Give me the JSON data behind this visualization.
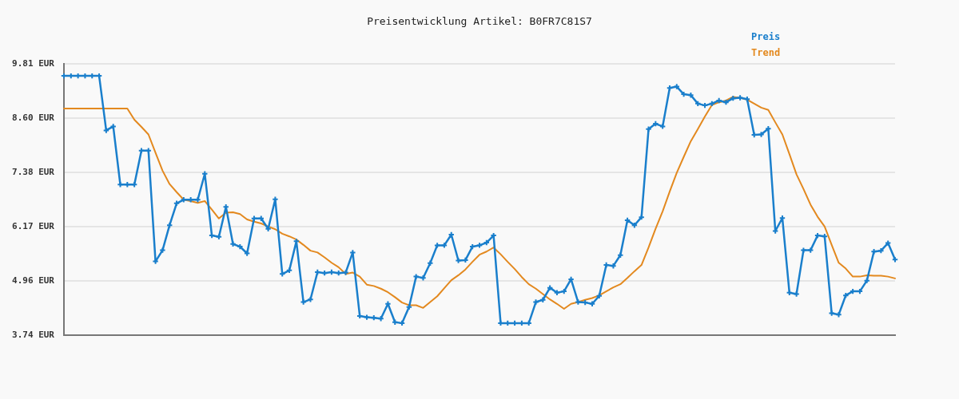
{
  "chart_data": {
    "type": "line",
    "title": "Preisentwicklung Artikel: B0FR7C81S7",
    "categories": [
      null,
      null,
      null,
      null,
      null,
      null,
      null,
      null,
      null,
      null,
      null,
      null,
      null,
      null,
      null,
      null,
      null,
      null,
      null,
      null,
      null,
      null,
      null,
      null,
      null,
      null,
      null,
      null,
      null,
      null,
      null,
      null,
      null,
      null,
      null,
      null,
      null,
      null,
      null,
      null,
      null,
      null,
      null,
      null,
      null,
      null,
      null,
      null,
      null,
      null,
      null,
      null,
      null,
      null,
      null,
      null,
      null,
      null,
      null,
      null,
      null,
      null,
      null,
      null,
      null,
      null,
      null,
      null,
      null,
      null,
      null,
      null,
      null,
      null,
      null,
      null,
      null,
      null,
      null,
      null,
      null,
      null,
      null,
      null,
      null,
      null,
      null,
      null,
      null,
      null,
      null,
      null,
      null,
      null,
      null,
      null,
      null,
      null,
      null,
      null,
      null,
      null,
      null,
      null,
      null,
      null,
      null,
      null,
      null,
      null,
      null,
      null,
      null,
      null,
      null,
      null,
      null,
      null,
      null
    ],
    "series": [
      {
        "name": "Preis",
        "color": "#1a7fcc",
        "marker": "cross",
        "values": [
          9.54,
          9.54,
          9.54,
          9.54,
          9.54,
          9.54,
          8.32,
          8.41,
          7.11,
          7.11,
          7.11,
          7.87,
          7.87,
          5.39,
          5.64,
          6.2,
          6.69,
          6.77,
          6.77,
          6.77,
          7.35,
          5.97,
          5.94,
          6.61,
          5.78,
          5.72,
          5.57,
          6.35,
          6.35,
          6.12,
          6.78,
          5.11,
          5.19,
          5.84,
          4.48,
          4.54,
          5.15,
          5.13,
          5.15,
          5.13,
          5.14,
          5.59,
          4.17,
          4.14,
          4.13,
          4.11,
          4.44,
          4.03,
          4.01,
          4.37,
          5.05,
          5.02,
          5.35,
          5.75,
          5.75,
          5.99,
          5.41,
          5.42,
          5.72,
          5.75,
          5.81,
          5.97,
          4.01,
          4.01,
          4.01,
          4.01,
          4.01,
          4.48,
          4.53,
          4.8,
          4.69,
          4.72,
          4.99,
          4.48,
          4.47,
          4.44,
          4.62,
          5.31,
          5.29,
          5.53,
          6.31,
          6.2,
          6.38,
          8.35,
          8.47,
          8.41,
          9.27,
          9.3,
          9.13,
          9.11,
          8.92,
          8.88,
          8.92,
          8.99,
          8.95,
          9.04,
          9.05,
          9.02,
          8.22,
          8.23,
          8.36,
          6.07,
          6.36,
          4.69,
          4.66,
          5.64,
          5.64,
          5.97,
          5.95,
          4.23,
          4.2,
          4.63,
          4.72,
          4.72,
          4.96,
          5.61,
          5.63,
          5.8,
          5.43
        ]
      },
      {
        "name": "Trend",
        "color": "#e3891f",
        "marker": "none",
        "values": [
          8.81,
          8.81,
          8.81,
          8.81,
          8.81,
          8.81,
          8.81,
          8.81,
          8.81,
          8.81,
          8.56,
          8.4,
          8.23,
          7.82,
          7.42,
          7.12,
          6.94,
          6.77,
          6.74,
          6.7,
          6.74,
          6.55,
          6.35,
          6.48,
          6.49,
          6.45,
          6.33,
          6.28,
          6.24,
          6.17,
          6.11,
          6.01,
          5.95,
          5.88,
          5.76,
          5.63,
          5.59,
          5.48,
          5.36,
          5.26,
          5.11,
          5.14,
          5.05,
          4.87,
          4.84,
          4.78,
          4.7,
          4.59,
          4.47,
          4.41,
          4.41,
          4.35,
          4.48,
          4.61,
          4.79,
          4.97,
          5.08,
          5.21,
          5.38,
          5.54,
          5.61,
          5.7,
          5.55,
          5.38,
          5.22,
          5.04,
          4.88,
          4.78,
          4.66,
          4.54,
          4.44,
          4.33,
          4.44,
          4.48,
          4.53,
          4.57,
          4.63,
          4.72,
          4.81,
          4.88,
          5.02,
          5.17,
          5.31,
          5.7,
          6.12,
          6.51,
          6.95,
          7.37,
          7.73,
          8.08,
          8.35,
          8.63,
          8.89,
          8.95,
          8.99,
          9.07,
          9.05,
          9.01,
          8.92,
          8.83,
          8.78,
          8.5,
          8.23,
          7.79,
          7.34,
          7.01,
          6.66,
          6.39,
          6.17,
          5.76,
          5.36,
          5.23,
          5.05,
          5.05,
          5.08,
          5.07,
          5.07,
          5.05,
          5.01
        ]
      }
    ],
    "ylim": [
      3.74,
      9.81
    ],
    "yticks": [
      {
        "value": 3.74,
        "label": "3.74 EUR"
      },
      {
        "value": 4.96,
        "label": "4.96 EUR"
      },
      {
        "value": 6.17,
        "label": "6.17 EUR"
      },
      {
        "value": 7.38,
        "label": "7.38 EUR"
      },
      {
        "value": 8.6,
        "label": "8.60 EUR"
      },
      {
        "value": 9.81,
        "label": "9.81 EUR"
      }
    ],
    "grid": "y",
    "legend": "top right",
    "tick_labels": "y"
  }
}
